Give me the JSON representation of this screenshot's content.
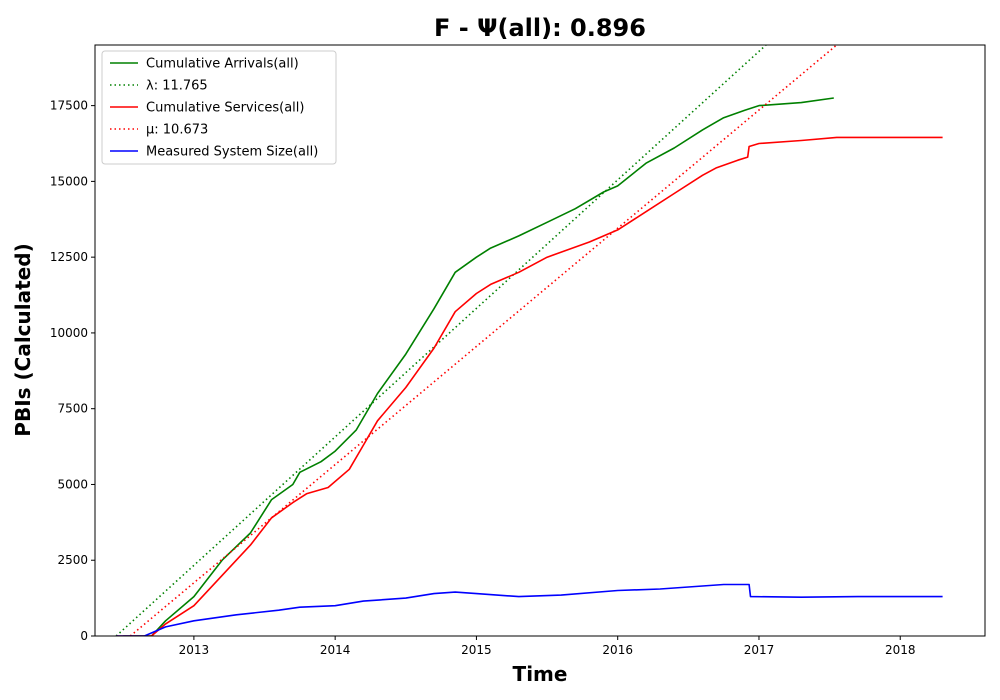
{
  "chart_data": {
    "type": "line",
    "title": "F -  Ψ(all): 0.896",
    "xlabel": "Time",
    "ylabel": "PBIs (Calculated)",
    "xlim": [
      2012.3,
      2018.6
    ],
    "ylim": [
      0,
      19500
    ],
    "xticks": [
      2013,
      2014,
      2015,
      2016,
      2017,
      2018
    ],
    "xtick_labels": [
      "2013",
      "2014",
      "2015",
      "2016",
      "2017",
      "2018"
    ],
    "yticks": [
      0,
      2500,
      5000,
      7500,
      10000,
      12500,
      15000,
      17500
    ],
    "ytick_labels": [
      "0",
      "2500",
      "5000",
      "7500",
      "10000",
      "12500",
      "15000",
      "17500"
    ],
    "grid": false,
    "legend_position": "top-left",
    "series": [
      {
        "name": "Cumulative Arrivals(all)",
        "color": "#008000",
        "style": "solid",
        "x": [
          2012.5,
          2012.7,
          2012.8,
          2013.0,
          2013.2,
          2013.4,
          2013.55,
          2013.7,
          2013.75,
          2013.9,
          2014.0,
          2014.15,
          2014.3,
          2014.5,
          2014.7,
          2014.85,
          2015.0,
          2015.1,
          2015.3,
          2015.5,
          2015.7,
          2015.9,
          2016.0,
          2016.2,
          2016.4,
          2016.6,
          2016.75,
          2016.9,
          2017.0,
          2017.3,
          2017.53
        ],
        "y": [
          0,
          0,
          500,
          1300,
          2500,
          3400,
          4500,
          5000,
          5400,
          5750,
          6100,
          6800,
          8000,
          9300,
          10800,
          12000,
          12500,
          12800,
          13200,
          13650,
          14100,
          14650,
          14850,
          15600,
          16100,
          16700,
          17100,
          17350,
          17500,
          17600,
          17750
        ]
      },
      {
        "name": "λ: 11.765",
        "color": "#008000",
        "style": "dotted",
        "x": [
          2012.45,
          2017.05
        ],
        "y": [
          0,
          19500
        ]
      },
      {
        "name": "Cumulative Services(all)",
        "color": "#ff0000",
        "style": "solid",
        "x": [
          2012.45,
          2012.7,
          2012.8,
          2013.0,
          2013.2,
          2013.4,
          2013.55,
          2013.7,
          2013.8,
          2013.95,
          2014.1,
          2014.2,
          2014.3,
          2014.5,
          2014.7,
          2014.85,
          2015.0,
          2015.1,
          2015.3,
          2015.5,
          2015.8,
          2016.0,
          2016.2,
          2016.4,
          2016.6,
          2016.7,
          2016.85,
          2016.92,
          2016.93,
          2017.0,
          2017.3,
          2017.55,
          2018.3
        ],
        "y": [
          0,
          0,
          400,
          1000,
          2000,
          3000,
          3900,
          4400,
          4700,
          4900,
          5500,
          6300,
          7100,
          8200,
          9500,
          10700,
          11300,
          11600,
          12000,
          12500,
          13000,
          13400,
          14000,
          14600,
          15200,
          15450,
          15700,
          15800,
          16150,
          16250,
          16350,
          16450,
          16450
        ]
      },
      {
        "name": "μ: 10.673",
        "color": "#ff0000",
        "style": "dotted",
        "x": [
          2012.55,
          2017.55
        ],
        "y": [
          0,
          19500
        ]
      },
      {
        "name": "Measured System Size(all)",
        "color": "#0000ff",
        "style": "solid",
        "x": [
          2012.45,
          2012.65,
          2012.8,
          2013.0,
          2013.3,
          2013.6,
          2013.75,
          2014.0,
          2014.2,
          2014.5,
          2014.7,
          2014.85,
          2015.0,
          2015.3,
          2015.6,
          2016.0,
          2016.3,
          2016.6,
          2016.75,
          2016.93,
          2016.94,
          2017.3,
          2017.7,
          2018.3
        ],
        "y": [
          0,
          0,
          300,
          500,
          700,
          850,
          950,
          1000,
          1150,
          1250,
          1400,
          1450,
          1400,
          1300,
          1350,
          1500,
          1550,
          1650,
          1700,
          1700,
          1300,
          1280,
          1300,
          1300
        ]
      }
    ]
  }
}
